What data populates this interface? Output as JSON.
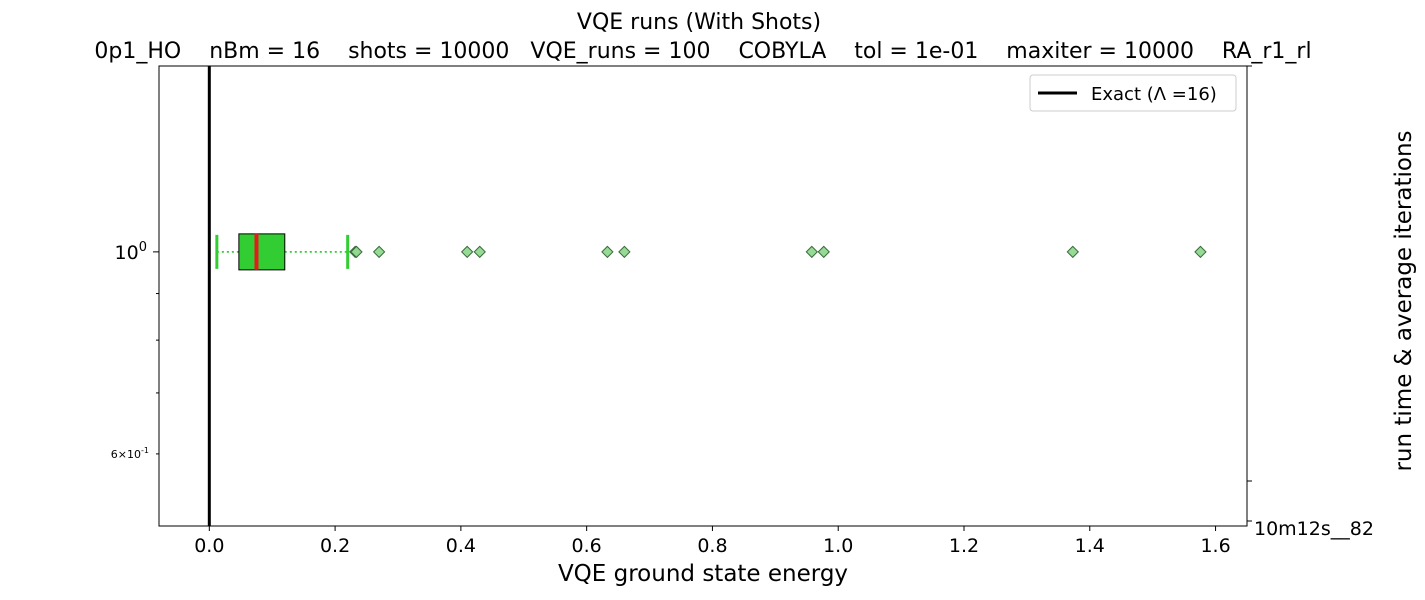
{
  "chart_data": {
    "type": "boxplot",
    "title": "VQE runs (With Shots)",
    "subtitle": "0p1_HO    nBm = 16    shots = 10000   VQE_runs = 100    COBYLA    tol = 1e-01    maxiter = 10000    RA_r1_rl",
    "xlabel": "VQE ground state energy",
    "ylabel_right": "run time & average iterations",
    "xlim": [
      -0.08,
      1.65
    ],
    "ylim_log": [
      0.5,
      1.6
    ],
    "x_ticks": [
      0.0,
      0.2,
      0.4,
      0.6,
      0.8,
      1.0,
      1.2,
      1.4,
      1.6
    ],
    "x_tick_labels": [
      "0.0",
      "0.2",
      "0.4",
      "0.6",
      "0.8",
      "1.0",
      "1.2",
      "1.4",
      "1.6"
    ],
    "y_ticks_major": [
      {
        "value": 1.0,
        "label": "10^0"
      }
    ],
    "y_ticks_minor": [
      {
        "value": 0.6,
        "label": "6×10^-1"
      }
    ],
    "right_tick_label": "10m12s__82",
    "box": {
      "position": 1.0,
      "whisker_low": 0.012,
      "q1": 0.047,
      "median": 0.075,
      "q3": 0.12,
      "whisker_high": 0.22
    },
    "outliers": [
      0.232,
      0.234,
      0.27,
      0.41,
      0.43,
      0.633,
      0.66,
      0.958,
      0.977,
      1.373,
      1.576
    ],
    "exact_line": {
      "x": 0.0,
      "label": "Exact (Λ =16)"
    },
    "legend": {
      "placement": "top-right",
      "entries": [
        "Exact (Λ =16)"
      ]
    },
    "colors": {
      "box_fill": "#32cd32",
      "median": "#e41a1c",
      "whisker": "#32cd32",
      "outlier_fill": "#8fd98f",
      "exact_line": "#000000"
    }
  }
}
